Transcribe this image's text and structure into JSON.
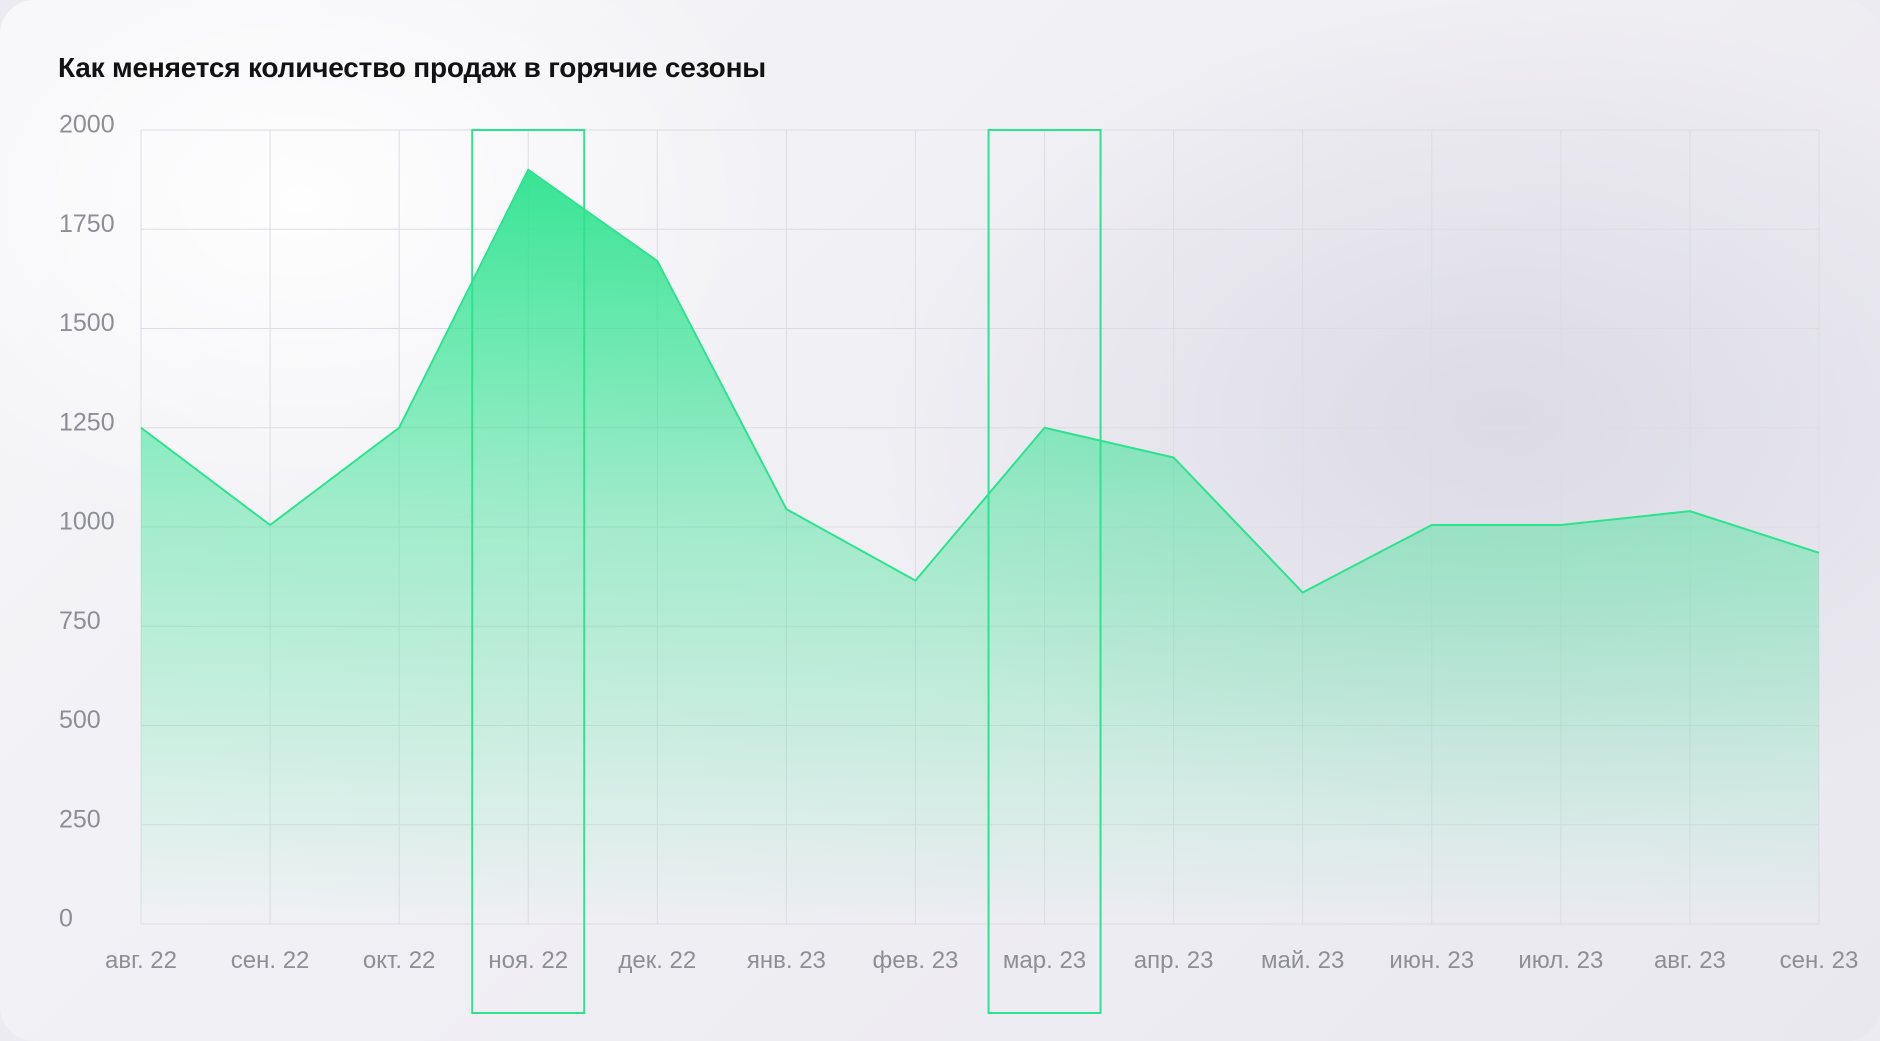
{
  "chart_data": {
    "type": "area",
    "title": "Как меняется количество продаж в горячие сезоны",
    "xlabel": "",
    "ylabel": "",
    "categories": [
      "авг. 22",
      "сен. 22",
      "окт. 22",
      "ноя. 22",
      "дек. 22",
      "янв. 23",
      "фев. 23",
      "мар. 23",
      "апр. 23",
      "май. 23",
      "июн. 23",
      "июл. 23",
      "авг. 23",
      "сен. 23"
    ],
    "series": [
      {
        "values": [
          1250,
          1005,
          1250,
          1900,
          1670,
          1045,
          865,
          1250,
          1175,
          835,
          1005,
          1005,
          1040,
          935
        ]
      }
    ],
    "ylim": [
      0,
      2000
    ],
    "yticks": [
      0,
      250,
      500,
      750,
      1000,
      1250,
      1500,
      1750,
      2000
    ],
    "grid": true,
    "highlighted_categories": [
      "ноя. 22",
      "мар. 23"
    ],
    "colors": {
      "line": "#2ee38f",
      "fill_top": "#2ee38f",
      "highlight_border": "#2ee38f",
      "grid": "#dddce3",
      "tick_text": "#8e8e97",
      "title_text": "#121212"
    }
  }
}
